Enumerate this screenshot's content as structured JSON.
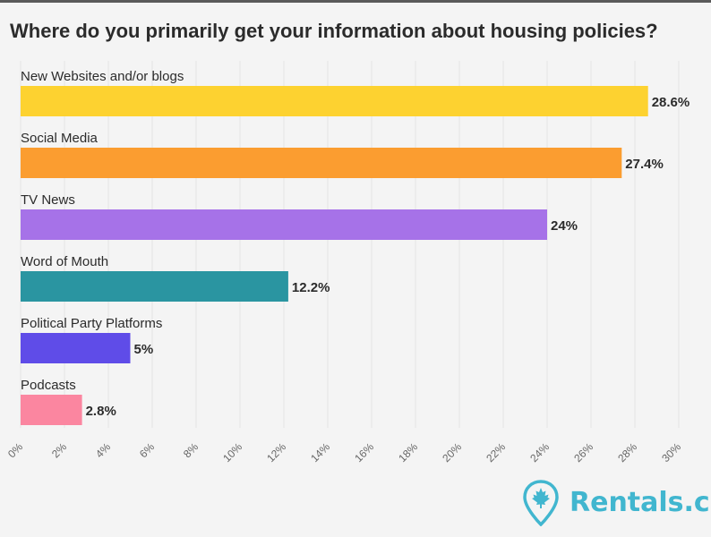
{
  "chart_data": {
    "type": "bar",
    "orientation": "horizontal",
    "title": "Where do you primarily get your information about housing policies?",
    "categories": [
      "New Websites and/or blogs",
      "Social Media",
      "TV News",
      "Word of Mouth",
      "Political Party Platforms",
      "Podcasts"
    ],
    "values": [
      28.6,
      27.4,
      24,
      12.2,
      5,
      2.8
    ],
    "value_labels": [
      "28.6%",
      "27.4%",
      "24%",
      "12.2%",
      "5%",
      "2.8%"
    ],
    "colors": [
      "#fdd230",
      "#fb9d30",
      "#a672e8",
      "#2a95a1",
      "#5f4ce8",
      "#fb86a0"
    ],
    "xlim": [
      0,
      30
    ],
    "x_ticks": [
      0,
      2,
      4,
      6,
      8,
      10,
      12,
      14,
      16,
      18,
      20,
      22,
      24,
      26,
      28,
      30
    ],
    "x_tick_labels": [
      "0%",
      "2%",
      "4%",
      "6%",
      "8%",
      "10%",
      "12%",
      "14%",
      "16%",
      "18%",
      "20%",
      "22%",
      "24%",
      "26%",
      "28%",
      "30%"
    ],
    "grid": true,
    "xlabel": "",
    "ylabel": ""
  },
  "branding": {
    "logo_text": "Rentals.ca",
    "logo_icon": "map-pin-maple-leaf-icon",
    "brand_color": "#41b6cf"
  }
}
